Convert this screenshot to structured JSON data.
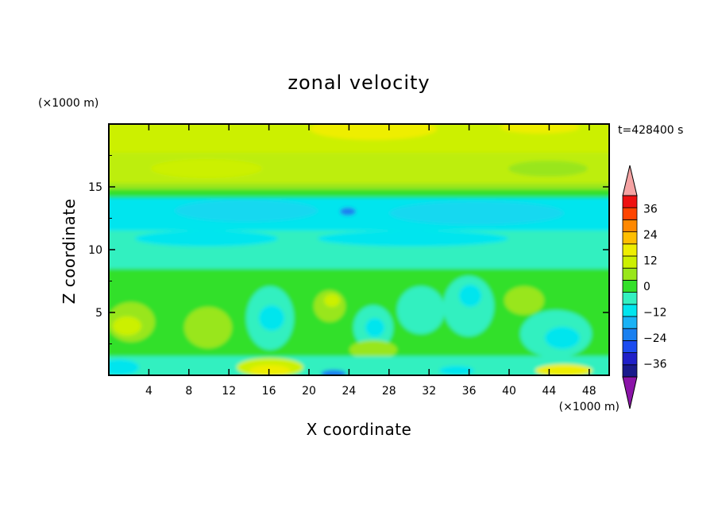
{
  "chart_data": {
    "type": "heatmap",
    "title": "zonal velocity",
    "xlabel": "X coordinate",
    "ylabel": "Z coordinate",
    "x_unit": "(×1000 m)",
    "y_unit": "(×1000 m)",
    "time_label": "t=428400 s",
    "xlim": [
      0,
      50
    ],
    "ylim": [
      0,
      20
    ],
    "x_ticks": [
      4,
      8,
      12,
      16,
      20,
      24,
      28,
      32,
      36,
      40,
      44,
      48
    ],
    "y_ticks": [
      5,
      10,
      15
    ],
    "colorbar": {
      "tick_values": [
        36,
        24,
        12,
        0,
        -12,
        -24,
        -36
      ],
      "levels": [
        -42,
        -36,
        -30,
        -24,
        -18,
        -12,
        -6,
        0,
        6,
        12,
        18,
        24,
        30,
        36,
        42
      ],
      "colors": [
        "#1a1a8c",
        "#2020c8",
        "#1c4cf0",
        "#1a80f0",
        "#19b2f5",
        "#00e5ee",
        "#33f0c0",
        "#33e02a",
        "#99e61a",
        "#ccf000",
        "#eeee00",
        "#ffbe00",
        "#ff8800",
        "#ff4400",
        "#ee1111"
      ],
      "over_color": "#f5a3a3",
      "under_color": "#8b14a8",
      "extend": "both"
    },
    "bands": [
      {
        "z_range": [
          17.5,
          20
        ],
        "value": 12
      },
      {
        "z_range": [
          15,
          17.5
        ],
        "value": 9
      },
      {
        "z_range": [
          14.2,
          15
        ],
        "value": 3
      },
      {
        "z_range": [
          11,
          14.2
        ],
        "value": -9
      },
      {
        "z_range": [
          8,
          11
        ],
        "value": -4
      },
      {
        "z_range": [
          0,
          8
        ],
        "value": 0
      }
    ]
  }
}
